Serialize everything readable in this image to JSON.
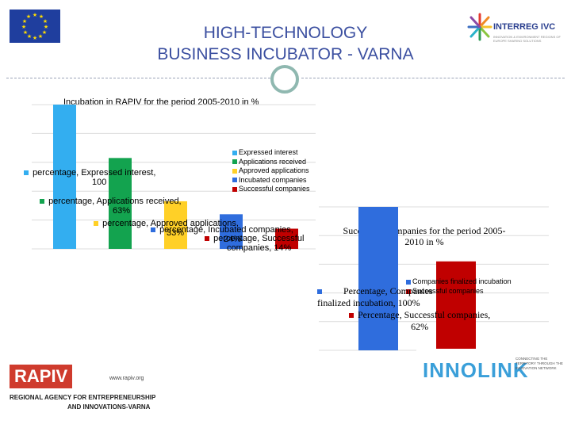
{
  "header": {
    "title_line1": "HIGH-TECHNOLOGY",
    "title_line2": "BUSINESS INCUBATOR - VARNA",
    "partner_logo": "INTERREG IVC",
    "partner_tagline": "INNOVATION & ENVIRONMENT REGIONS OF EUROPE SHARING SOLUTIONS"
  },
  "footer": {
    "rapiv_name": "RAPIV",
    "rapiv_url": "www.rapiv.org",
    "rapiv_line1": "REGIONAL AGENCY FOR ENTREPRENEURSHIP",
    "rapiv_line2": "AND INNOVATIONS-VARNA",
    "innolink_name": "INNOLINK",
    "innolink_tagline": "CONNECTING THE TERRITORY THROUGH THE INNOVATION NETWORK"
  },
  "colors": {
    "expressed": "#33aef0",
    "applications": "#13a34f",
    "approved": "#ffd027",
    "incubated": "#2f6ddd",
    "successful": "#c00000",
    "header_text": "#3b4fa0"
  },
  "chart_data": [
    {
      "type": "bar",
      "title": "Incubation in RAPIV for the period 2005-2010 in %",
      "categories": [
        "Expressed interest",
        "Applications received",
        "Approved applications",
        "Incubated companies",
        "Successful companies"
      ],
      "values": [
        100,
        63,
        33,
        24,
        14
      ],
      "ylim": [
        0,
        100
      ],
      "grid": true,
      "legend": "right",
      "legend_entries": [
        "Expressed interest",
        "Applications received",
        "Approved applications",
        "Incubated companies",
        "Successful companies"
      ],
      "data_labels": [
        "percentage, Expressed interest, 100",
        "percentage, Applications received, 63%",
        "percentage, Approved applications, 33%",
        "percentage, Incubated companies, 24%",
        "percentage, Successful companies, 14%"
      ]
    },
    {
      "type": "bar",
      "title": "Successful companies for the period 2005-2010 in %",
      "categories": [
        "Companies finalized incubation",
        "Successful companies"
      ],
      "values": [
        100,
        62
      ],
      "ylim": [
        0,
        100
      ],
      "grid": true,
      "legend": "top",
      "legend_entries": [
        "Companies finalized incubation",
        "Successful companies"
      ],
      "data_labels": [
        "Percentage, Companies finalized incubation, 100%",
        "Percentage, Successful companies, 62%"
      ]
    }
  ]
}
